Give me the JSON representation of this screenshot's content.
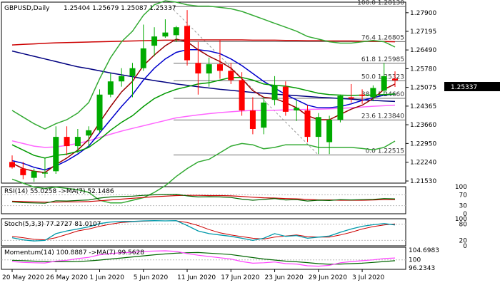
{
  "chart_data": {
    "type": "candlestick",
    "title": "GBPUSD,Daily",
    "ohlc_label": "1.25404 1.25679 1.25087 1.25337",
    "last_price_label": "1.25337",
    "price_ylim": [
      1.2145,
      1.283
    ],
    "price_ticks": [
      "1.27900",
      "1.27195",
      "1.26490",
      "1.25780",
      "1.25075",
      "1.24365",
      "1.23660",
      "1.22950",
      "1.22240",
      "1.21530"
    ],
    "x_labels": [
      {
        "i": 0,
        "label": "20 May 2020"
      },
      {
        "i": 4,
        "label": "26 May 2020"
      },
      {
        "i": 8,
        "label": "1 Jun 2020"
      },
      {
        "i": 12,
        "label": "5 Jun 2020"
      },
      {
        "i": 16,
        "label": "11 Jun 2020"
      },
      {
        "i": 20,
        "label": "17 Jun 2020"
      },
      {
        "i": 24,
        "label": "23 Jun 2020"
      },
      {
        "i": 28,
        "label": "29 Jun 2020"
      },
      {
        "i": 32,
        "label": "3 Jul 2020"
      }
    ],
    "candles": [
      {
        "o": 1.2225,
        "h": 1.225,
        "l": 1.22,
        "c": 1.2205
      },
      {
        "o": 1.22,
        "h": 1.2225,
        "l": 1.216,
        "c": 1.2175
      },
      {
        "o": 1.2165,
        "h": 1.22,
        "l": 1.215,
        "c": 1.219
      },
      {
        "o": 1.2185,
        "h": 1.224,
        "l": 1.2165,
        "c": 1.2185
      },
      {
        "o": 1.219,
        "h": 1.236,
        "l": 1.218,
        "c": 1.232
      },
      {
        "o": 1.232,
        "h": 1.236,
        "l": 1.225,
        "c": 1.2285
      },
      {
        "o": 1.2285,
        "h": 1.235,
        "l": 1.226,
        "c": 1.232
      },
      {
        "o": 1.2325,
        "h": 1.236,
        "l": 1.228,
        "c": 1.2345
      },
      {
        "o": 1.2345,
        "h": 1.25,
        "l": 1.2335,
        "c": 1.248
      },
      {
        "o": 1.248,
        "h": 1.256,
        "l": 1.247,
        "c": 1.253
      },
      {
        "o": 1.253,
        "h": 1.258,
        "l": 1.251,
        "c": 1.255
      },
      {
        "o": 1.255,
        "h": 1.26,
        "l": 1.247,
        "c": 1.258
      },
      {
        "o": 1.258,
        "h": 1.2745,
        "l": 1.257,
        "c": 1.2655
      },
      {
        "o": 1.2665,
        "h": 1.2735,
        "l": 1.2625,
        "c": 1.27
      },
      {
        "o": 1.27,
        "h": 1.2765,
        "l": 1.2695,
        "c": 1.2715
      },
      {
        "o": 1.2705,
        "h": 1.274,
        "l": 1.268,
        "c": 1.2735
      },
      {
        "o": 1.274,
        "h": 1.28,
        "l": 1.259,
        "c": 1.261
      },
      {
        "o": 1.26,
        "h": 1.268,
        "l": 1.248,
        "c": 1.256
      },
      {
        "o": 1.256,
        "h": 1.262,
        "l": 1.251,
        "c": 1.2595
      },
      {
        "o": 1.2595,
        "h": 1.2685,
        "l": 1.254,
        "c": 1.257
      },
      {
        "o": 1.257,
        "h": 1.26,
        "l": 1.252,
        "c": 1.2535
      },
      {
        "o": 1.2535,
        "h": 1.2565,
        "l": 1.24,
        "c": 1.242
      },
      {
        "o": 1.242,
        "h": 1.247,
        "l": 1.233,
        "c": 1.235
      },
      {
        "o": 1.2355,
        "h": 1.247,
        "l": 1.233,
        "c": 1.245
      },
      {
        "o": 1.246,
        "h": 1.255,
        "l": 1.244,
        "c": 1.2515
      },
      {
        "o": 1.251,
        "h": 1.253,
        "l": 1.24,
        "c": 1.2415
      },
      {
        "o": 1.242,
        "h": 1.246,
        "l": 1.238,
        "c": 1.243
      },
      {
        "o": 1.242,
        "h": 1.244,
        "l": 1.23,
        "c": 1.232
      },
      {
        "o": 1.232,
        "h": 1.241,
        "l": 1.2255,
        "c": 1.2395
      },
      {
        "o": 1.23,
        "h": 1.24,
        "l": 1.2255,
        "c": 1.2385
      },
      {
        "o": 1.2385,
        "h": 1.248,
        "l": 1.2375,
        "c": 1.2475
      },
      {
        "o": 1.247,
        "h": 1.252,
        "l": 1.245,
        "c": 1.2465
      },
      {
        "o": 1.248,
        "h": 1.25,
        "l": 1.2445,
        "c": 1.2475
      },
      {
        "o": 1.247,
        "h": 1.2515,
        "l": 1.2455,
        "c": 1.2505
      },
      {
        "o": 1.2495,
        "h": 1.26,
        "l": 1.248,
        "c": 1.255
      },
      {
        "o": 1.254,
        "h": 1.2568,
        "l": 1.2509,
        "c": 1.2534
      }
    ],
    "fibonacci": [
      {
        "label": "100.0 1.28130",
        "y": 1.2813
      },
      {
        "label": "76.4 1.26805",
        "y": 1.26805
      },
      {
        "label": "61.8 1.25985",
        "y": 1.25985
      },
      {
        "label": "50.0 1.25323",
        "y": 1.25323
      },
      {
        "label": "38.2 1.24660",
        "y": 1.2466
      },
      {
        "label": "23.6 1.23840",
        "y": 1.2384
      },
      {
        "label": "0.0 1.22515",
        "y": 1.22515
      }
    ],
    "overlays": [
      {
        "color": "#cc0000",
        "values": [
          1.2668,
          1.267,
          1.2672,
          1.2674,
          1.2676,
          1.2677,
          1.2678,
          1.2679,
          1.268,
          1.2681,
          1.2682,
          1.2683,
          1.2684,
          1.2685,
          1.2686,
          1.2686,
          1.2687,
          1.2687,
          1.2687,
          1.2687,
          1.2687,
          1.2687,
          1.2686,
          1.2686,
          1.2686,
          1.2685,
          1.2685,
          1.2684,
          1.2684,
          1.2683,
          1.2683,
          1.2683,
          1.2682,
          1.2682,
          1.2681,
          1.268
        ]
      },
      {
        "color": "#000080",
        "values": [
          1.2645,
          1.2635,
          1.2625,
          1.2615,
          1.2605,
          1.2595,
          1.2585,
          1.2578,
          1.257,
          1.2562,
          1.2555,
          1.2548,
          1.254,
          1.2533,
          1.2527,
          1.252,
          1.2515,
          1.251,
          1.2505,
          1.25,
          1.2496,
          1.2492,
          1.2488,
          1.2485,
          1.2482,
          1.2479,
          1.2476,
          1.2473,
          1.247,
          1.2468,
          1.2465,
          1.2463,
          1.246,
          1.2458,
          1.2456,
          1.2454
        ]
      },
      {
        "color": "#ff66ff",
        "values": [
          1.2305,
          1.2295,
          1.2285,
          1.228,
          1.2282,
          1.2288,
          1.2295,
          1.2305,
          1.2318,
          1.233,
          1.2342,
          1.2352,
          1.2362,
          1.2372,
          1.2382,
          1.2392,
          1.2398,
          1.2403,
          1.2408,
          1.2412,
          1.2415,
          1.2418,
          1.242,
          1.242,
          1.2421,
          1.2422,
          1.2423,
          1.2424,
          1.2425,
          1.2426,
          1.2428,
          1.243,
          1.2433,
          1.2436,
          1.2438,
          1.244
        ]
      },
      {
        "color": "#0000cc",
        "values": [
          1.223,
          1.222,
          1.2205,
          1.2195,
          1.221,
          1.223,
          1.2255,
          1.2285,
          1.2335,
          1.2385,
          1.2435,
          1.248,
          1.2535,
          1.258,
          1.2615,
          1.264,
          1.265,
          1.265,
          1.2645,
          1.2635,
          1.2615,
          1.259,
          1.256,
          1.253,
          1.2505,
          1.248,
          1.246,
          1.244,
          1.243,
          1.243,
          1.2435,
          1.2445,
          1.2458,
          1.2468,
          1.2478,
          1.2482
        ]
      },
      {
        "color": "#990000",
        "values": [
          1.222,
          1.22,
          1.219,
          1.2185,
          1.2215,
          1.224,
          1.227,
          1.231,
          1.2375,
          1.2435,
          1.249,
          1.253,
          1.259,
          1.263,
          1.2665,
          1.269,
          1.268,
          1.265,
          1.2625,
          1.2605,
          1.258,
          1.254,
          1.2495,
          1.247,
          1.2465,
          1.245,
          1.243,
          1.24,
          1.2385,
          1.2385,
          1.2405,
          1.2425,
          1.244,
          1.2465,
          1.25,
          1.252
        ]
      },
      {
        "color": "#009900",
        "values": [
          1.229,
          1.227,
          1.225,
          1.224,
          1.225,
          1.2255,
          1.2265,
          1.228,
          1.231,
          1.2345,
          1.2375,
          1.24,
          1.2435,
          1.2465,
          1.2485,
          1.25,
          1.251,
          1.252,
          1.2525,
          1.2535,
          1.2545,
          1.2545,
          1.2535,
          1.252,
          1.2515,
          1.2512,
          1.2505,
          1.2495,
          1.2485,
          1.248,
          1.2478,
          1.2477,
          1.2478,
          1.2478,
          1.248,
          1.2482
        ]
      },
      {
        "color": "#33aa33",
        "values": [
          1.242,
          1.2395,
          1.237,
          1.235,
          1.237,
          1.2385,
          1.241,
          1.245,
          1.254,
          1.262,
          1.268,
          1.272,
          1.278,
          1.282,
          1.2835,
          1.283,
          1.282,
          1.2815,
          1.2815,
          1.281,
          1.2805,
          1.2795,
          1.278,
          1.2765,
          1.275,
          1.2735,
          1.272,
          1.27,
          1.269,
          1.268,
          1.2675,
          1.2675,
          1.268,
          1.2685,
          1.268,
          1.266
        ]
      },
      {
        "color": "#33aa33",
        "values": [
          1.216,
          1.2145,
          1.213,
          1.2125,
          1.213,
          1.2125,
          1.212,
          1.211,
          1.208,
          1.207,
          1.207,
          1.208,
          1.209,
          1.211,
          1.2135,
          1.217,
          1.22,
          1.2225,
          1.2235,
          1.226,
          1.2285,
          1.2295,
          1.229,
          1.2275,
          1.228,
          1.229,
          1.229,
          1.229,
          1.228,
          1.228,
          1.228,
          1.228,
          1.2276,
          1.2271,
          1.228,
          1.2304
        ]
      }
    ],
    "rsi": {
      "label": "RSI(14) 55.0258 ->MA(7) 52.1486",
      "ylim": [
        0,
        100
      ],
      "ticks": [
        "100",
        "70",
        "30",
        "0"
      ],
      "rsi_values": [
        44,
        41,
        40,
        39,
        48,
        47,
        49,
        51,
        58,
        62,
        64,
        65,
        68,
        70,
        71,
        72,
        66,
        62,
        63,
        62,
        60,
        54,
        50,
        53,
        56,
        51,
        52,
        47,
        50,
        49,
        52,
        51,
        52,
        53,
        56,
        55
      ],
      "ma_values": [
        46,
        45,
        44,
        43,
        43,
        44,
        44,
        45,
        48,
        51,
        54,
        57,
        60,
        63,
        65,
        67,
        68,
        68,
        67,
        67,
        66,
        64,
        61,
        59,
        58,
        56,
        55,
        53,
        51,
        51,
        50,
        50,
        50,
        51,
        52,
        52
      ]
    },
    "stoch": {
      "label": "Stoch(5,3,3) 77.2727 81.0107",
      "ylim": [
        0,
        100
      ],
      "ticks": [
        "100",
        "80",
        "20",
        "0"
      ],
      "k_values": [
        30,
        22,
        18,
        20,
        45,
        55,
        62,
        70,
        82,
        88,
        90,
        90,
        92,
        93,
        92,
        93,
        75,
        55,
        45,
        40,
        35,
        28,
        20,
        28,
        45,
        35,
        38,
        28,
        32,
        36,
        50,
        62,
        72,
        78,
        82,
        77
      ],
      "d_values": [
        35,
        30,
        24,
        22,
        30,
        42,
        55,
        62,
        72,
        80,
        86,
        89,
        91,
        92,
        92,
        92,
        86,
        75,
        60,
        48,
        40,
        34,
        28,
        25,
        32,
        36,
        40,
        34,
        32,
        32,
        40,
        50,
        62,
        71,
        77,
        81
      ]
    },
    "momentum": {
      "label": "Momentum(14) 100.8887 ->MA(7) 99.5628",
      "ticks": [
        "104.6983",
        "100",
        "96.2343"
      ],
      "ylim": [
        95.5,
        106
      ],
      "mom_values": [
        99.2,
        98.8,
        98.6,
        98.5,
        99.4,
        99.8,
        100.6,
        101.2,
        102.4,
        103.0,
        103.4,
        103.6,
        104.0,
        104.2,
        104.3,
        104.0,
        103.0,
        102.2,
        101.6,
        101.0,
        100.4,
        99.2,
        98.4,
        98.6,
        99.0,
        98.2,
        98.0,
        97.2,
        97.0,
        97.4,
        98.6,
        99.2,
        99.6,
        100.0,
        100.6,
        100.9
      ],
      "ma_values": [
        99.8,
        99.6,
        99.4,
        99.2,
        99.1,
        99.1,
        99.2,
        99.5,
        99.9,
        100.4,
        100.9,
        101.4,
        101.9,
        102.4,
        102.8,
        103.2,
        103.4,
        103.5,
        103.2,
        102.9,
        102.5,
        101.8,
        101.1,
        100.4,
        99.9,
        99.4,
        99.1,
        98.7,
        98.2,
        97.9,
        98.0,
        98.2,
        98.4,
        98.8,
        99.2,
        99.6
      ]
    }
  }
}
